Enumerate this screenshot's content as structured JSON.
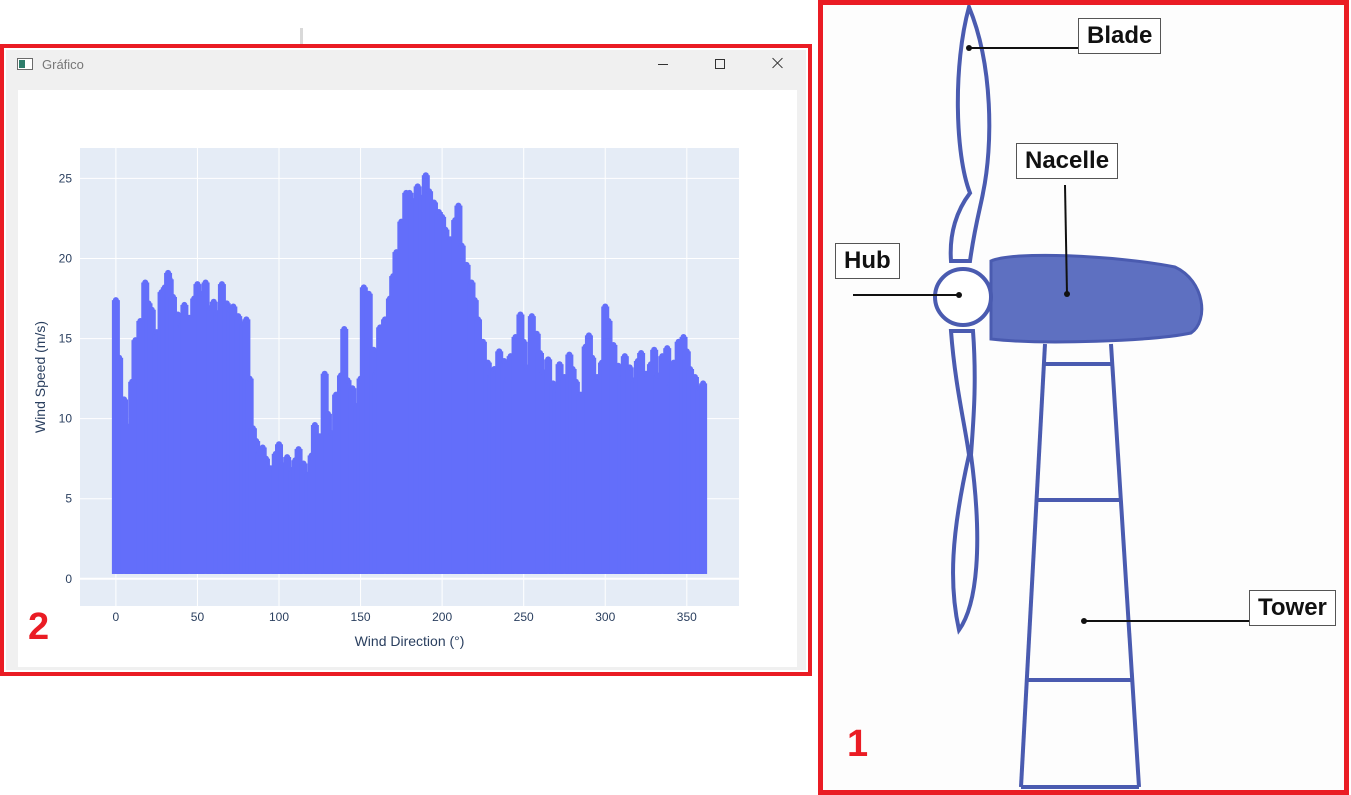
{
  "panel_2": {
    "number": "2",
    "window": {
      "title": "Gráfico"
    },
    "chart_data": {
      "type": "scatter",
      "title": "",
      "xlabel": "Wind Direction (°)",
      "ylabel": "Wind Speed (m/s)",
      "xlim": [
        -22,
        382
      ],
      "ylim": [
        -1.7,
        26.9
      ],
      "xticks": [
        0,
        50,
        100,
        150,
        200,
        250,
        300,
        350
      ],
      "yticks": [
        0,
        5,
        10,
        15,
        20,
        25
      ],
      "marker_color": "#636efa",
      "plot_background": "#e5ecf6",
      "grid": true,
      "legend": "none",
      "series": [
        {
          "x": [
            0,
            2,
            5,
            8,
            10,
            12,
            15,
            18,
            20,
            22,
            25,
            28,
            30,
            32,
            33,
            35,
            38,
            40,
            42,
            45,
            48,
            50,
            52,
            55,
            58,
            60,
            62,
            65,
            68,
            70,
            72,
            75,
            78,
            80,
            82,
            84,
            86,
            88,
            90,
            92,
            95,
            98,
            100,
            102,
            105,
            108,
            110,
            112,
            115,
            118,
            120,
            122,
            125,
            128,
            130,
            132,
            135,
            138,
            140,
            142,
            145,
            148,
            150,
            152,
            155,
            158,
            160,
            162,
            165,
            168,
            170,
            172,
            175,
            178,
            180,
            182,
            185,
            188,
            190,
            192,
            195,
            198,
            200,
            202,
            205,
            208,
            210,
            212,
            215,
            218,
            220,
            222,
            225,
            228,
            230,
            232,
            235,
            238,
            240,
            242,
            245,
            248,
            250,
            252,
            255,
            258,
            260,
            262,
            265,
            268,
            270,
            272,
            275,
            278,
            280,
            282,
            285,
            288,
            290,
            292,
            295,
            298,
            300,
            302,
            305,
            308,
            310,
            312,
            315,
            318,
            320,
            322,
            325,
            328,
            330,
            332,
            335,
            338,
            340,
            342,
            345,
            348,
            350,
            352,
            355,
            358,
            360
          ],
          "y": [
            17.4,
            13.8,
            11.2,
            9.5,
            12.3,
            14.9,
            16.1,
            18.5,
            17.2,
            16.8,
            15.4,
            17.9,
            18.2,
            19.1,
            18.7,
            17.6,
            16.5,
            15.8,
            17.1,
            16.3,
            17.5,
            18.4,
            17.8,
            18.5,
            16.9,
            17.3,
            16.6,
            18.4,
            17.2,
            16.8,
            17.0,
            16.4,
            15.9,
            16.2,
            12.5,
            9.4,
            8.6,
            7.9,
            8.2,
            7.5,
            6.9,
            7.8,
            8.4,
            7.1,
            7.6,
            6.8,
            7.4,
            8.1,
            7.2,
            6.5,
            7.7,
            9.6,
            8.9,
            12.8,
            10.3,
            9.1,
            11.5,
            12.7,
            15.6,
            12.4,
            11.9,
            10.8,
            12.5,
            18.2,
            17.8,
            14.3,
            12.9,
            15.7,
            16.2,
            17.5,
            18.9,
            20.4,
            22.3,
            24.1,
            24.1,
            23.6,
            24.5,
            23.8,
            25.2,
            24.2,
            23.5,
            22.9,
            22.6,
            21.8,
            21.2,
            22.4,
            23.3,
            20.8,
            19.6,
            18.5,
            17.4,
            16.2,
            14.8,
            13.5,
            12.7,
            13.1,
            14.2,
            13.6,
            12.4,
            13.9,
            15.1,
            16.5,
            14.8,
            13.2,
            16.4,
            15.3,
            14.1,
            12.9,
            13.7,
            12.2,
            11.8,
            13.4,
            12.6,
            14.0,
            13.1,
            12.3,
            11.5,
            14.5,
            15.2,
            13.8,
            12.6,
            13.5,
            17.0,
            16.1,
            14.6,
            13.3,
            12.5,
            13.9,
            13.2,
            12.4,
            13.6,
            14.1,
            12.8,
            13.4,
            14.3,
            12.7,
            13.9,
            14.4,
            12.1,
            13.5,
            14.8,
            15.1,
            14.2,
            13.1,
            12.6,
            11.9,
            12.2
          ]
        }
      ]
    }
  },
  "panel_1": {
    "number": "1",
    "labels": {
      "blade": "Blade",
      "nacelle": "Nacelle",
      "hub": "Hub",
      "tower": "Tower"
    },
    "stroke_color": "#4a5bb0",
    "nacelle_fill": "#5e70c1"
  }
}
